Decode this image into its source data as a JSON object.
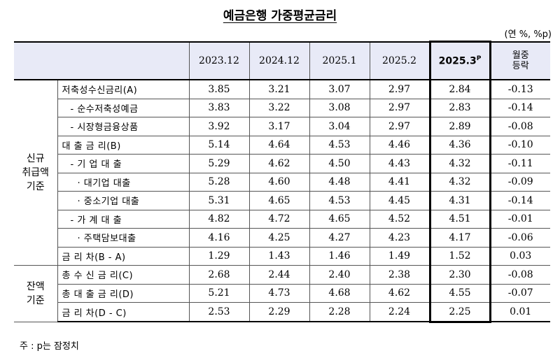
{
  "title": "예금은행 가중평균금리",
  "unit": "(연 %, %p)",
  "columns": [
    "2023.12",
    "2024.12",
    "2025.1",
    "2025.2",
    "2025.3",
    "월중 등락"
  ],
  "highlight_superscript": "P",
  "change_header_line1": "월중",
  "change_header_line2": "등락",
  "groups": {
    "new": [
      "신규",
      "취급액",
      "기준"
    ],
    "balance": [
      "잔액",
      "기준"
    ]
  },
  "rows": [
    {
      "label": "저축성수신금리(A)",
      "values": [
        "3.85",
        "3.21",
        "3.07",
        "2.97",
        "2.84",
        "-0.13"
      ]
    },
    {
      "label": "- 순수저축성예금",
      "values": [
        "3.83",
        "3.22",
        "3.08",
        "2.97",
        "2.83",
        "-0.14"
      ]
    },
    {
      "label": "- 시장형금융상품",
      "values": [
        "3.92",
        "3.17",
        "3.04",
        "2.97",
        "2.89",
        "-0.08"
      ]
    },
    {
      "label": "대 출 금 리(B)",
      "values": [
        "5.14",
        "4.64",
        "4.53",
        "4.46",
        "4.36",
        "-0.10"
      ]
    },
    {
      "label": "- 기 업 대 출",
      "values": [
        "5.29",
        "4.62",
        "4.50",
        "4.43",
        "4.32",
        "-0.11"
      ]
    },
    {
      "label": "· 대기업 대출",
      "values": [
        "5.28",
        "4.60",
        "4.48",
        "4.41",
        "4.32",
        "-0.09"
      ]
    },
    {
      "label": "· 중소기업 대출",
      "values": [
        "5.31",
        "4.65",
        "4.53",
        "4.45",
        "4.31",
        "-0.14"
      ]
    },
    {
      "label": "- 가 계 대 출",
      "values": [
        "4.82",
        "4.72",
        "4.65",
        "4.52",
        "4.51",
        "-0.01"
      ]
    },
    {
      "label": "· 주택담보대출",
      "values": [
        "4.16",
        "4.25",
        "4.27",
        "4.23",
        "4.17",
        "-0.06"
      ]
    },
    {
      "label": "금 리 차(B - A)",
      "values": [
        "1.29",
        "1.43",
        "1.46",
        "1.49",
        "1.52",
        "0.03"
      ]
    },
    {
      "label": "총 수 신 금 리(C)",
      "values": [
        "2.68",
        "2.44",
        "2.40",
        "2.38",
        "2.30",
        "-0.08"
      ]
    },
    {
      "label": "총 대 출 금 리(D)",
      "values": [
        "5.21",
        "4.73",
        "4.68",
        "4.62",
        "4.55",
        "-0.07"
      ]
    },
    {
      "label": "금 리 차(D - C)",
      "values": [
        "2.53",
        "2.29",
        "2.28",
        "2.24",
        "2.25",
        "0.01"
      ]
    }
  ],
  "footnote": "주 : p는 잠정치"
}
